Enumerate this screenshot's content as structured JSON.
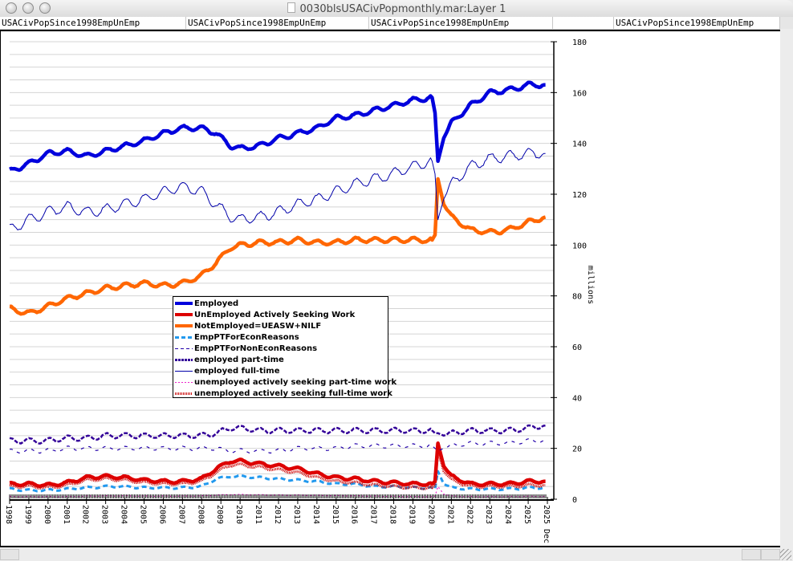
{
  "window": {
    "title": "0030blsUSACivPopmonthly.mar:Layer 1",
    "tabs": [
      "USACivPopSince1998EmpUnEmp",
      "USACivPopSince1998EmpUnEmp",
      "USACivPopSince1998EmpUnEmp",
      "",
      "USACivPopSince1998EmpUnEmp"
    ]
  },
  "colors": {
    "employed": "#0000dd",
    "unemployed": "#dd0000",
    "not_employed": "#ff6600",
    "pt_econ": "#2299ee",
    "pt_nonecon": "#2200aa",
    "part_time": "#330099",
    "full_time": "#0000aa",
    "unemp_pt": "#ee22cc",
    "unemp_ft": "#cc0000",
    "grid": "#d4d4d4"
  },
  "chart_data": {
    "type": "line",
    "title": "",
    "xlabel": "",
    "ylabel": "millions",
    "ylim": [
      0,
      180
    ],
    "xlim": [
      1998.0,
      2026.0
    ],
    "grid": true,
    "legend_placement": "center-left",
    "y_ticks": [
      "0",
      "20",
      "40",
      "60",
      "80",
      "100",
      "120",
      "140",
      "160",
      "180"
    ],
    "x_ticks": [
      "1998",
      "1999",
      "2000",
      "2001",
      "2002",
      "2003",
      "2004",
      "2005",
      "2006",
      "2007",
      "2008",
      "2009",
      "2010",
      "2011",
      "2012",
      "2013",
      "2014",
      "2015",
      "2016",
      "2017",
      "2018",
      "2019",
      "2020",
      "2021",
      "2022",
      "2023",
      "2024",
      "2025",
      "2025 Dec"
    ],
    "x": [
      1998.0,
      1999.0,
      2000.0,
      2001.0,
      2002.0,
      2003.0,
      2004.0,
      2005.0,
      2006.0,
      2007.0,
      2008.0,
      2008.75,
      2009.5,
      2010.0,
      2011.0,
      2012.0,
      2013.0,
      2014.0,
      2015.0,
      2016.0,
      2017.0,
      2018.0,
      2019.0,
      2020.0,
      2020.15,
      2020.3,
      2020.6,
      2021.0,
      2022.0,
      2023.0,
      2024.0,
      2025.0,
      2025.9
    ],
    "series": [
      {
        "key": "employed",
        "name": "Employed",
        "style": "thick",
        "values": [
          129,
          132,
          136,
          137,
          135,
          137,
          139,
          141,
          144,
          146,
          146,
          144,
          139,
          138,
          139,
          142,
          144,
          146,
          150,
          151,
          153,
          155,
          157,
          158,
          152,
          133,
          142,
          148,
          155,
          160,
          161,
          163,
          163
        ]
      },
      {
        "key": "not_employed",
        "name": "NotEmployed=UEASW+NILF",
        "style": "thick",
        "values": [
          75,
          73,
          76,
          79,
          81,
          83,
          84,
          85,
          84,
          85,
          88,
          93,
          99,
          100,
          101,
          101,
          102,
          101,
          101,
          102,
          102,
          102,
          102,
          102,
          104,
          126,
          116,
          111,
          106,
          105,
          106,
          109,
          111
        ]
      },
      {
        "key": "full_time",
        "name": "employed full-time",
        "style": "thin",
        "values": [
          106,
          110,
          113,
          115,
          113,
          114,
          116,
          118,
          121,
          123,
          121,
          116,
          111,
          110,
          111,
          113,
          116,
          118,
          121,
          124,
          126,
          128,
          131,
          133,
          128,
          110,
          118,
          124,
          131,
          134,
          135,
          136,
          136
        ]
      },
      {
        "key": "part_time",
        "name": "employed part-time",
        "style": "dotted",
        "values": [
          23,
          23,
          23,
          24,
          24,
          25,
          25,
          25,
          25,
          25,
          25,
          26,
          28,
          28,
          27,
          27,
          27,
          27,
          27,
          27,
          27,
          27,
          27,
          27,
          26,
          26,
          25,
          26,
          27,
          27,
          27,
          28,
          29
        ]
      },
      {
        "key": "pt_nonecon",
        "name": "EmpPTForNonEconReasons",
        "style": "dashed",
        "values": [
          19,
          19,
          19,
          20,
          20,
          20,
          20,
          20,
          20,
          20,
          20,
          20,
          19,
          19,
          19,
          19,
          20,
          20,
          20,
          21,
          21,
          21,
          21,
          21,
          20,
          19,
          20,
          21,
          22,
          22,
          22,
          23,
          23
        ]
      },
      {
        "key": "unemployed",
        "name": "UnEmployed Actively Seeking Work",
        "style": "thick",
        "values": [
          6,
          6,
          5.5,
          6.5,
          8.5,
          9,
          8.5,
          7.5,
          7,
          7,
          8,
          12,
          15,
          15,
          14,
          13,
          12,
          10,
          8.5,
          8,
          7,
          6.5,
          6,
          6,
          7,
          22,
          13,
          9,
          6,
          6,
          6,
          7,
          7
        ]
      },
      {
        "key": "unemp_ft",
        "name": "unemployed actively seeking full-time work",
        "style": "hatched",
        "values": [
          5,
          5,
          4.5,
          5.5,
          7.5,
          8,
          7.5,
          6.5,
          6,
          6,
          7,
          10.5,
          13.5,
          13.5,
          12.5,
          11.5,
          10.5,
          8.5,
          7,
          6.5,
          5.5,
          5,
          4.5,
          4.5,
          5.5,
          19,
          11,
          7.5,
          5,
          5,
          5,
          5.5,
          5.5
        ]
      },
      {
        "key": "pt_econ",
        "name": "EmpPTForEconReasons",
        "style": "dashed-thick",
        "values": [
          4,
          3.5,
          3.5,
          4,
          4.5,
          5,
          5,
          4.5,
          4.5,
          4.5,
          5,
          8,
          9,
          9,
          8.5,
          8,
          7.5,
          7,
          6,
          6,
          5,
          5,
          4.5,
          4.5,
          4,
          11,
          6,
          4.5,
          4,
          4,
          4,
          4.5,
          4.5
        ]
      },
      {
        "key": "unemp_pt",
        "name": "unemployed actively seeking part-time work",
        "style": "dotted-thin",
        "values": [
          1,
          1,
          1,
          1,
          1.2,
          1.3,
          1.3,
          1.2,
          1.2,
          1.2,
          1.3,
          1.6,
          1.8,
          1.8,
          1.7,
          1.6,
          1.6,
          1.5,
          1.4,
          1.3,
          1.2,
          1.1,
          1,
          1,
          1.2,
          5,
          2,
          1.2,
          1,
          1,
          1,
          1.1,
          1.1
        ]
      }
    ]
  },
  "legend": [
    {
      "key": "employed",
      "label": "Employed"
    },
    {
      "key": "unemployed",
      "label": "UnEmployed Actively Seeking Work"
    },
    {
      "key": "not_employed",
      "label": "NotEmployed=UEASW+NILF"
    },
    {
      "key": "pt_econ",
      "label": "EmpPTForEconReasons"
    },
    {
      "key": "pt_nonecon",
      "label": "EmpPTForNonEconReasons"
    },
    {
      "key": "part_time",
      "label": "employed part-time"
    },
    {
      "key": "full_time",
      "label": "employed full-time"
    },
    {
      "key": "unemp_pt",
      "label": "unemployed actively seeking part-time work"
    },
    {
      "key": "unemp_ft",
      "label": "unemployed actively seeking full-time work"
    }
  ]
}
